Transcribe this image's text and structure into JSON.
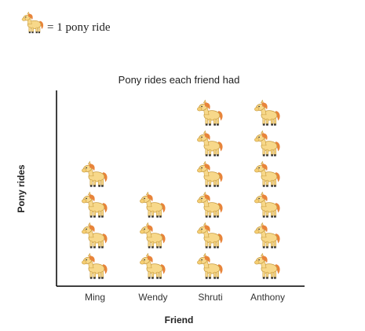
{
  "legend": {
    "text": "= 1 pony ride",
    "icon": "pony-icon"
  },
  "chart_data": {
    "type": "pictograph",
    "title": "Pony rides each friend had",
    "xlabel": "Friend",
    "ylabel": "Pony rides",
    "categories": [
      "Ming",
      "Wendy",
      "Shruti",
      "Anthony"
    ],
    "values": [
      4,
      3,
      6,
      6
    ],
    "unit": "1 pony ride",
    "colors": {
      "body": "#F7D88A",
      "mane": "#E8843A",
      "outline": "#C79A3E",
      "hoof": "#333333",
      "axis": "#000000"
    }
  }
}
